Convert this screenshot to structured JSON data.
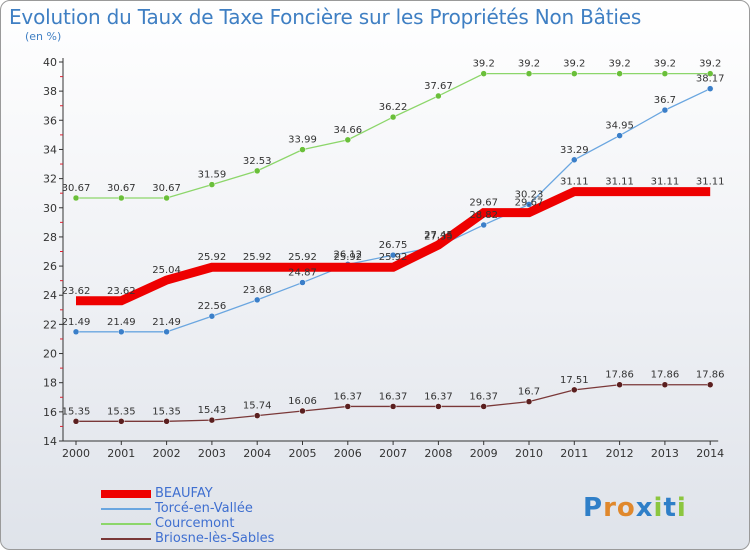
{
  "header": {
    "title": "Evolution du Taux de Taxe Foncière sur les Propriétés Non Bâties",
    "unit": "(en %)"
  },
  "logo": {
    "text": "Proxiti",
    "letters": [
      "P",
      "r",
      "o",
      "x",
      "i",
      "t",
      "i"
    ],
    "colors": [
      "#2f7fc8",
      "#e0882c",
      "#e0882c",
      "#2f7fc8",
      "#8cc63f",
      "#2f7fc8",
      "#8cc63f"
    ]
  },
  "chart_data": {
    "type": "line",
    "title": "Evolution du Taux de Taxe Foncière sur les Propriétés Non Bâties",
    "ylabel": "(en %)",
    "categories": [
      "2000",
      "2001",
      "2002",
      "2003",
      "2004",
      "2005",
      "2006",
      "2007",
      "2008",
      "2009",
      "2010",
      "2011",
      "2012",
      "2013",
      "2014"
    ],
    "ylim": [
      14,
      40
    ],
    "yticks": [
      14,
      16,
      18,
      20,
      22,
      24,
      26,
      28,
      30,
      32,
      34,
      36,
      38,
      40
    ],
    "grid": false,
    "legend_position": "bottom-left",
    "series": [
      {
        "name": "Courcemont",
        "color": "#8cd66a",
        "marker": "#6abf3a",
        "values": [
          30.67,
          30.67,
          30.67,
          31.59,
          32.53,
          33.99,
          34.66,
          36.22,
          37.67,
          39.2,
          39.2,
          39.2,
          39.2,
          39.2,
          39.2
        ],
        "labels": [
          "30.67",
          "30.67",
          "30.67",
          "31.59",
          "32.53",
          "33.99",
          "34.66",
          "36.22",
          "37.67",
          "39.2",
          "39.2",
          "39.2",
          "39.2",
          "39.2",
          "39.2"
        ]
      },
      {
        "name": "Torcé-en-Vallée",
        "color": "#6aa6e0",
        "marker": "#3b7fc9",
        "values": [
          21.49,
          21.49,
          21.49,
          22.56,
          23.68,
          24.87,
          26.12,
          26.75,
          27.35,
          28.82,
          30.23,
          33.29,
          34.95,
          36.7,
          38.17
        ],
        "labels": [
          "21.49",
          "21.49",
          "21.49",
          "22.56",
          "23.68",
          "24.87",
          "26.12",
          "26.75",
          "27.35",
          "28.82",
          "30.23",
          "33.29",
          "34.95",
          "36.7",
          "38.17"
        ]
      },
      {
        "name": "Briosne-lès-Sables",
        "color": "#7a3838",
        "marker": "#5a1f1f",
        "values": [
          15.35,
          15.35,
          15.35,
          15.43,
          15.74,
          16.06,
          16.37,
          16.37,
          16.37,
          16.37,
          16.7,
          17.51,
          17.86,
          17.86,
          17.86
        ],
        "labels": [
          "15.35",
          "15.35",
          "15.35",
          "15.43",
          "15.74",
          "16.06",
          "16.37",
          "16.37",
          "16.37",
          "16.37",
          "16.7",
          "17.51",
          "17.86",
          "17.86",
          "17.86"
        ]
      },
      {
        "name": "BEAUFAY",
        "color": "#ee0000",
        "marker": "#ee0000",
        "values": [
          23.62,
          23.62,
          25.04,
          25.92,
          25.92,
          25.92,
          25.92,
          25.92,
          27.45,
          29.67,
          29.67,
          31.11,
          31.11,
          31.11,
          31.11
        ],
        "labels": [
          "23.62",
          "23.62",
          "25.04",
          "25.92",
          "25.92",
          "25.92",
          "25.92",
          "25.92",
          "27.45",
          "29.67",
          "29.67",
          "31.11",
          "31.11",
          "31.11",
          "31.11"
        ]
      }
    ],
    "legend_order": [
      "BEAUFAY",
      "Torcé-en-Vallée",
      "Courcemont",
      "Briosne-lès-Sables"
    ]
  }
}
